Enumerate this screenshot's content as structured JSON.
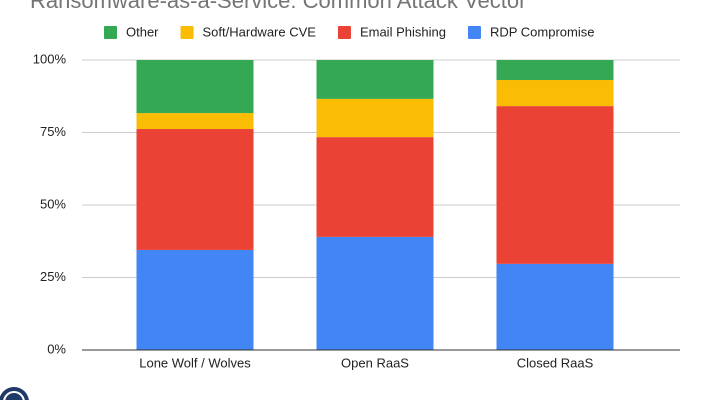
{
  "chart_data": {
    "type": "stacked-bar",
    "title": "Ransomware-as-a-Service: Common Attack Vector",
    "categories": [
      "Lone Wolf / Wolves",
      "Open RaaS",
      "Closed RaaS"
    ],
    "series": [
      {
        "name": "RDP Compromise",
        "color": "#4285f4",
        "values": [
          34.5,
          39.0,
          29.7
        ]
      },
      {
        "name": "Email Phishing",
        "color": "#ea4335",
        "values": [
          41.7,
          34.4,
          54.4
        ]
      },
      {
        "name": "Soft/Hardware CVE",
        "color": "#fbbc04",
        "values": [
          5.5,
          13.2,
          9.0
        ]
      },
      {
        "name": "Other",
        "color": "#34a853",
        "values": [
          18.3,
          13.4,
          6.9
        ]
      }
    ],
    "ylim": [
      0,
      100
    ],
    "yticks": [
      {
        "value": 0,
        "label": "0%"
      },
      {
        "value": 25,
        "label": "25%"
      },
      {
        "value": 50,
        "label": "50%"
      },
      {
        "value": 75,
        "label": "75%"
      },
      {
        "value": 100,
        "label": "100%"
      }
    ],
    "grid": true,
    "legend": "top"
  }
}
